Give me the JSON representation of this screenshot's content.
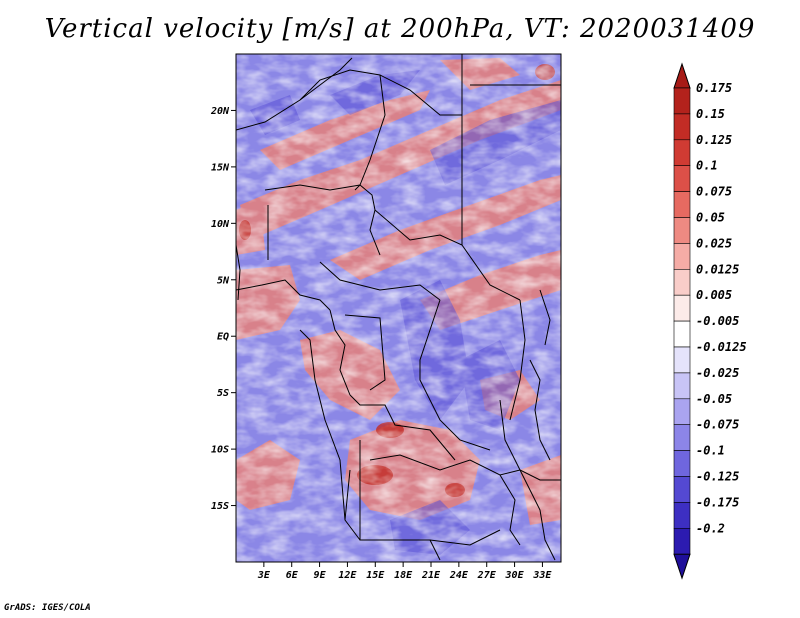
{
  "title": "Vertical velocity [m/s] at 200hPa, VT: 2020031409",
  "credit": "GrADS: IGES/COLA",
  "map": {
    "lon_range": [
      0,
      35
    ],
    "lat_range": [
      -20,
      25
    ],
    "lat_ticks": [
      {
        "value": 20,
        "label": "20N"
      },
      {
        "value": 15,
        "label": "15N"
      },
      {
        "value": 10,
        "label": "10N"
      },
      {
        "value": 5,
        "label": "5N"
      },
      {
        "value": 0,
        "label": "EQ"
      },
      {
        "value": -5,
        "label": "5S"
      },
      {
        "value": -10,
        "label": "10S"
      },
      {
        "value": -15,
        "label": "15S"
      }
    ],
    "lon_ticks": [
      {
        "value": 3,
        "label": "3E"
      },
      {
        "value": 6,
        "label": "6E"
      },
      {
        "value": 9,
        "label": "9E"
      },
      {
        "value": 12,
        "label": "12E"
      },
      {
        "value": 15,
        "label": "15E"
      },
      {
        "value": 18,
        "label": "18E"
      },
      {
        "value": 21,
        "label": "21E"
      },
      {
        "value": 24,
        "label": "24E"
      },
      {
        "value": 27,
        "label": "27E"
      },
      {
        "value": 30,
        "label": "30E"
      },
      {
        "value": 33,
        "label": "33E"
      }
    ]
  },
  "colorbar": {
    "levels": [
      {
        "label": "0.175",
        "color": "#b3221c"
      },
      {
        "label": "0.15",
        "color": "#c22c25"
      },
      {
        "label": "0.125",
        "color": "#d03b33"
      },
      {
        "label": "0.1",
        "color": "#dc5048"
      },
      {
        "label": "0.075",
        "color": "#e66a61"
      },
      {
        "label": "0.05",
        "color": "#ee8a82"
      },
      {
        "label": "0.025",
        "color": "#f5aca6"
      },
      {
        "label": "0.0125",
        "color": "#f9cdc9"
      },
      {
        "label": "0.005",
        "color": "#fcebe9"
      },
      {
        "label": "-0.005",
        "color": "#ffffff"
      },
      {
        "label": "-0.0125",
        "color": "#e5e3fb"
      },
      {
        "label": "-0.025",
        "color": "#c8c4f6"
      },
      {
        "label": "-0.05",
        "color": "#aaa4f0"
      },
      {
        "label": "-0.075",
        "color": "#8c85e8"
      },
      {
        "label": "-0.1",
        "color": "#6f66de"
      },
      {
        "label": "-0.125",
        "color": "#5449d2"
      },
      {
        "label": "-0.175",
        "color": "#3d2fc2"
      },
      {
        "label": "-0.2",
        "color": "#2c1bb0"
      }
    ],
    "top_color": "#a71b17",
    "bottom_color": "#1f0f9a"
  },
  "colors": {
    "negative_base": "#8b87e6",
    "positive": "#e6807a",
    "coast": "#000000"
  }
}
